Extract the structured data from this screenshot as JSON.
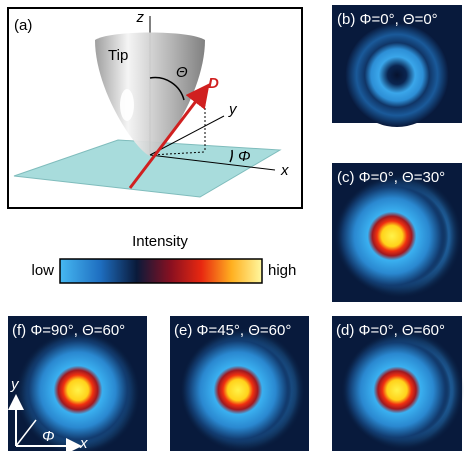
{
  "panel_a": {
    "label": "(a)",
    "axis_z": "z",
    "tip": "Tip",
    "theta": "Θ",
    "dipole": "D",
    "axis_y": "y",
    "phi": "Φ",
    "axis_x": "x"
  },
  "colorbar": {
    "title": "Intensity",
    "low": "low",
    "high": "high"
  },
  "panels": [
    {
      "label": "(b) Φ=0°, Θ=0°"
    },
    {
      "label": "(c) Φ=0°, Θ=30°"
    },
    {
      "label": "(f) Φ=90°, Θ=60°"
    },
    {
      "label": "(e) Φ=45°, Θ=60°"
    },
    {
      "label": "(d) Φ=0°, Θ=60°"
    }
  ],
  "inset": {
    "axis_y": "y",
    "phi": "Φ",
    "axis_x": "x"
  }
}
